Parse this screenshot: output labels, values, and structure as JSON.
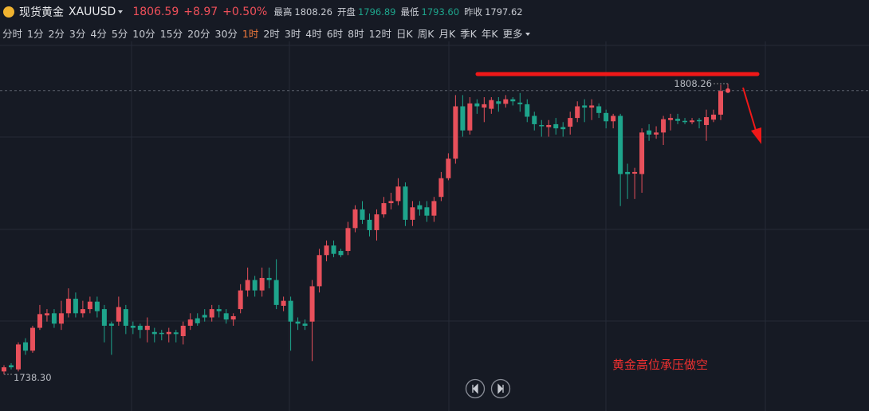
{
  "header": {
    "name": "现货黄金",
    "symbol": "XAUUSD",
    "price": "1806.59",
    "change": "+8.97",
    "change_pct": "+0.50%",
    "stats": [
      {
        "label": "最高",
        "value": "1808.26"
      },
      {
        "label": "开盘",
        "value": "1796.89"
      },
      {
        "label": "最低",
        "value": "1793.60"
      },
      {
        "label": "昨收",
        "value": "1797.62"
      }
    ]
  },
  "toolbar": {
    "timeframes": [
      "分时",
      "1分",
      "2分",
      "3分",
      "4分",
      "5分",
      "10分",
      "15分",
      "20分",
      "30分",
      "1时",
      "2时",
      "3时",
      "4时",
      "6时",
      "8时",
      "12时",
      "日K",
      "周K",
      "月K",
      "季K",
      "年K"
    ],
    "active": "1时",
    "more": "更多"
  },
  "chart_data": {
    "type": "candlestick",
    "up_color": "#e8505b",
    "down_color": "#1ea58c",
    "open": [
      1739.0,
      1740.5,
      1739.5,
      1746,
      1744,
      1749.5,
      1752.5,
      1753,
      1750.5,
      1753,
      1756.5,
      1753,
      1754,
      1755.8,
      1754,
      1750.5,
      1751,
      1754,
      1750,
      1750,
      1749,
      1748.5,
      1748.3,
      1748,
      1748.4,
      1747.5,
      1750,
      1751.8,
      1752.6,
      1752,
      1754,
      1753,
      1751.5,
      1754,
      1758.5,
      1761,
      1758.5,
      1761.5,
      1761,
      1754.8,
      1756,
      1751,
      1750.5,
      1751,
      1759.5,
      1767,
      1769.3,
      1768,
      1768,
      1773.5,
      1778,
      1775.5,
      1773,
      1776.8,
      1779.5,
      1780,
      1783.5,
      1775.5,
      1779,
      1778.5,
      1776.5,
      1781,
      1785.5,
      1790.2,
      1802.8,
      1797,
      1803.5,
      1802.5,
      1802.2,
      1804,
      1803.4,
      1804.5,
      1803.7,
      1803.3,
      1800.5,
      1798.3,
      1797.8,
      1798.5,
      1797.8,
      1797.9,
      1800,
      1803,
      1802.5,
      1802.8,
      1801.2,
      1799.2,
      1800.5,
      1787,
      1786.6,
      1786.5,
      1797,
      1796,
      1796.5,
      1799.5,
      1799.8,
      1799.3,
      1799,
      1799.5,
      1798.3,
      1799.6,
      1800.8,
      1806.5
    ],
    "high": [
      1740.5,
      1741,
      1746,
      1747,
      1750,
      1755,
      1754,
      1754,
      1756,
      1759,
      1758,
      1756,
      1757,
      1757,
      1755,
      1751,
      1757,
      1755,
      1751,
      1750.5,
      1752,
      1749.5,
      1749,
      1749.5,
      1749,
      1751,
      1753,
      1753,
      1754,
      1755,
      1755,
      1754,
      1753,
      1760,
      1764,
      1762,
      1764,
      1764,
      1766,
      1757,
      1757,
      1752,
      1751.5,
      1761,
      1768.5,
      1770.5,
      1770.5,
      1768.5,
      1775,
      1779,
      1780,
      1777,
      1778,
      1781,
      1782,
      1785.5,
      1784.5,
      1780,
      1780,
      1780,
      1781,
      1787,
      1791.5,
      1805.5,
      1805.5,
      1805,
      1804.5,
      1805,
      1805,
      1805,
      1805.5,
      1805,
      1806,
      1804.5,
      1801.5,
      1799.5,
      1799.5,
      1800,
      1799,
      1801.5,
      1804,
      1804.5,
      1804.5,
      1803.5,
      1802,
      1801,
      1801,
      1789,
      1788,
      1797.5,
      1798.5,
      1798,
      1800.5,
      1801,
      1801,
      1800,
      1800,
      1800,
      1802,
      1802,
      1808,
      1808.26
    ],
    "low": [
      1738.3,
      1739.5,
      1739,
      1743,
      1743.5,
      1749,
      1751,
      1749.5,
      1749,
      1752,
      1752,
      1752,
      1753,
      1752,
      1746,
      1743,
      1750,
      1748,
      1748,
      1747,
      1746,
      1746,
      1746.5,
      1746,
      1746,
      1745.5,
      1749,
      1750,
      1751,
      1751,
      1752,
      1750.5,
      1750,
      1753,
      1757,
      1757,
      1757,
      1759,
      1754,
      1753.5,
      1744,
      1749,
      1749,
      1741.5,
      1758,
      1765.5,
      1766.5,
      1766.5,
      1767,
      1772.5,
      1774.5,
      1771.5,
      1770.5,
      1776,
      1778,
      1779,
      1774,
      1774,
      1776.5,
      1775,
      1775,
      1780,
      1785,
      1789,
      1795.5,
      1796,
      1801,
      1799,
      1801,
      1801.5,
      1802.5,
      1803,
      1801.5,
      1799,
      1797,
      1795.5,
      1795.5,
      1796,
      1795.5,
      1796,
      1799,
      1799,
      1799.5,
      1800,
      1797.5,
      1797.5,
      1778.8,
      1780.5,
      1780.5,
      1782,
      1794.5,
      1795,
      1793.5,
      1797,
      1798.5,
      1798.5,
      1798.5,
      1797.5,
      1794.5,
      1799,
      1799.5,
      1806.3
    ],
    "close": [
      1740.0,
      1740.0,
      1745.5,
      1744,
      1749.5,
      1752.8,
      1753,
      1750.5,
      1753,
      1756.5,
      1753,
      1754,
      1755.8,
      1753.5,
      1750,
      1750,
      1754.5,
      1750,
      1749.5,
      1749,
      1750,
      1748,
      1748,
      1748.5,
      1748,
      1750,
      1751.5,
      1750.6,
      1752,
      1754,
      1753.5,
      1751.5,
      1752.3,
      1758.5,
      1761,
      1758.5,
      1761.5,
      1761,
      1755,
      1756,
      1751,
      1750.5,
      1750,
      1759.5,
      1767,
      1769.3,
      1767.3,
      1767,
      1773.5,
      1778,
      1775.5,
      1773,
      1776.8,
      1779.5,
      1780,
      1783.5,
      1775.5,
      1778.5,
      1778,
      1776.5,
      1780,
      1785.5,
      1790.2,
      1802.8,
      1797,
      1803.5,
      1802.8,
      1803.3,
      1804.3,
      1803.4,
      1804.5,
      1804,
      1803.3,
      1800.3,
      1798.5,
      1798,
      1798.3,
      1797.5,
      1797.3,
      1800,
      1802.8,
      1802.5,
      1803,
      1801.2,
      1799.2,
      1800.5,
      1786.5,
      1786.5,
      1787,
      1796.5,
      1796,
      1796.5,
      1799.7,
      1800,
      1799.3,
      1799,
      1799.4,
      1799.2,
      1800.2,
      1800.8,
      1806.5,
      1806.59
    ],
    "high_label": 1808.26,
    "low_label": {
      "value": 1738.3,
      "label": "1738.30"
    },
    "annotation": "黄金高位承压做空"
  }
}
